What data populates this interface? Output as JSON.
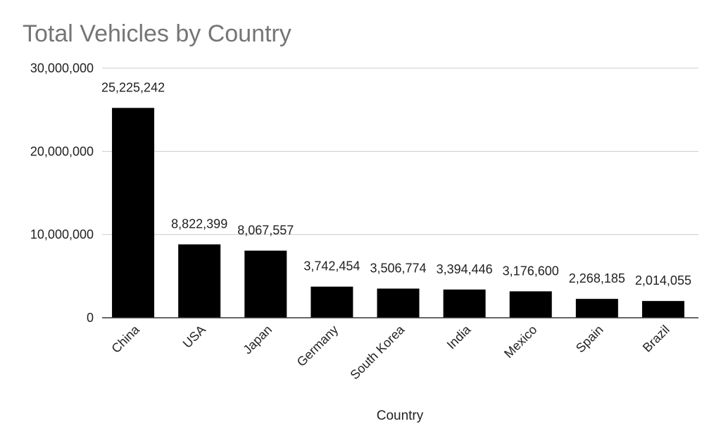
{
  "chart_data": {
    "type": "bar",
    "title": "Total Vehicles by Country",
    "xlabel": "Country",
    "ylabel": "",
    "categories": [
      "China",
      "USA",
      "Japan",
      "Germany",
      "South Korea",
      "India",
      "Mexico",
      "Spain",
      "Brazil"
    ],
    "values": [
      25225242,
      8822399,
      8067557,
      3742454,
      3506774,
      3394446,
      3176600,
      2268185,
      2014055
    ],
    "data_labels": [
      "25,225,242",
      "8,822,399",
      "8,067,557",
      "3,742,454",
      "3,506,774",
      "3,394,446",
      "3,176,600",
      "2,268,185",
      "2,014,055"
    ],
    "ylim": [
      0,
      30000000
    ],
    "yticks": [
      0,
      10000000,
      20000000,
      30000000
    ],
    "ytick_labels": [
      "0",
      "10,000,000",
      "20,000,000",
      "30,000,000"
    ],
    "grid": true,
    "legend": "none"
  },
  "colors": {
    "bar": "#000000",
    "gridline": "#cccccc",
    "axis": "#333333",
    "title": "#757575",
    "text": "#222222",
    "background": "#ffffff"
  }
}
